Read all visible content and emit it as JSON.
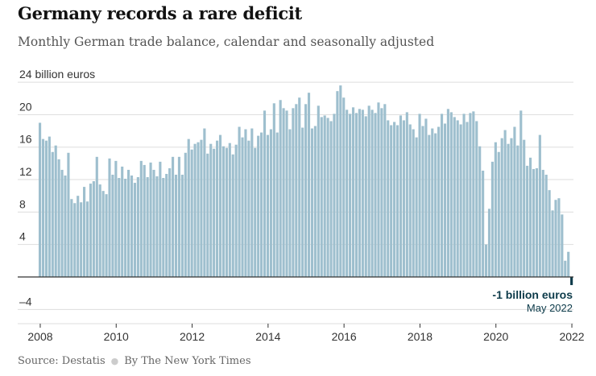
{
  "header": {
    "title": "Germany records a rare deficit",
    "subtitle": "Monthly German trade balance, calendar and seasonally adjusted"
  },
  "footer": {
    "source": "Source: Destatis",
    "credit": "By The New York Times"
  },
  "colors": {
    "bar": "#9ebfce",
    "negative_bar": "#0d3b4a",
    "annotation": "#0d3b4a",
    "grid": "#dddddd",
    "zero_line": "#333333",
    "axis_text": "#333333"
  },
  "chart_data": {
    "type": "bar",
    "title": "Germany records a rare deficit",
    "subtitle": "Monthly German trade balance, calendar and seasonally adjusted",
    "unit": "billion euros",
    "ylim": [
      -6,
      24
    ],
    "y_ticks": [
      {
        "value": 24,
        "label": "24 billion euros"
      },
      {
        "value": 20,
        "label": "20"
      },
      {
        "value": 16,
        "label": "16"
      },
      {
        "value": 12,
        "label": "12"
      },
      {
        "value": 8,
        "label": "8"
      },
      {
        "value": 4,
        "label": "4"
      },
      {
        "value": -4,
        "label": "–4"
      }
    ],
    "x_ticks": [
      "2008",
      "2010",
      "2012",
      "2014",
      "2016",
      "2018",
      "2020",
      "2022"
    ],
    "start": "2008-01",
    "end": "2022-05",
    "grid": true,
    "annotation": {
      "value_label": "-1 billion euros",
      "date_label": "May 2022"
    },
    "series": [
      {
        "name": "Monthly trade balance",
        "values": [
          19,
          17,
          16.8,
          17.3,
          15.4,
          16.2,
          14.5,
          13.2,
          12.5,
          15.3,
          9.6,
          9.1,
          10,
          9.2,
          11.1,
          9.3,
          11.5,
          11.8,
          14.8,
          11.4,
          10.6,
          10.2,
          14.6,
          12.6,
          14.3,
          12.2,
          13.6,
          12.1,
          13.2,
          12.5,
          11.6,
          12.3,
          14.3,
          13.8,
          12.3,
          14.1,
          13.2,
          12.4,
          14.2,
          12.2,
          12.7,
          13.4,
          14.8,
          12.6,
          14.8,
          12.6,
          15.3,
          17,
          15.7,
          16.4,
          16.6,
          16.9,
          18.3,
          15.2,
          16.4,
          15.8,
          16.8,
          17.5,
          16.1,
          15.9,
          16.5,
          15.1,
          16.3,
          18.5,
          17.2,
          18.2,
          16.8,
          18.3,
          15.9,
          17.4,
          17.8,
          20.5,
          17.5,
          18.2,
          21.4,
          17.8,
          21.8,
          20.8,
          20.5,
          18.2,
          20.8,
          21.3,
          22.1,
          18.4,
          21.3,
          22.7,
          18.3,
          18.6,
          21.1,
          19.7,
          19.9,
          19.6,
          19.2,
          20.1,
          22.9,
          23.6,
          22.1,
          20.6,
          20.1,
          20.9,
          20.2,
          20.7,
          20.6,
          19.8,
          21.1,
          20.6,
          20.2,
          21.5,
          20.8,
          21.3,
          19.3,
          18.7,
          19.1,
          18.7,
          19.9,
          19.3,
          20.3,
          18.8,
          18.2,
          17.2,
          20.1,
          18.6,
          19.5,
          17.5,
          18.3,
          17.7,
          18.5,
          20.1,
          18.9,
          20.7,
          20.3,
          19.7,
          19.3,
          18.8,
          20.1,
          19.1,
          20.2,
          20.4,
          19.2,
          16.1,
          13.1,
          4,
          8.4,
          14.2,
          16.6,
          15.4,
          17.1,
          18.1,
          16.4,
          17.1,
          18.5,
          16.2,
          20.5,
          16.9,
          13.7,
          14.7,
          13.3,
          13.4,
          17.5,
          13.2,
          12.6,
          10.7,
          8.2,
          9.5,
          9.7,
          7.7,
          2,
          3.1,
          -1
        ]
      }
    ]
  }
}
